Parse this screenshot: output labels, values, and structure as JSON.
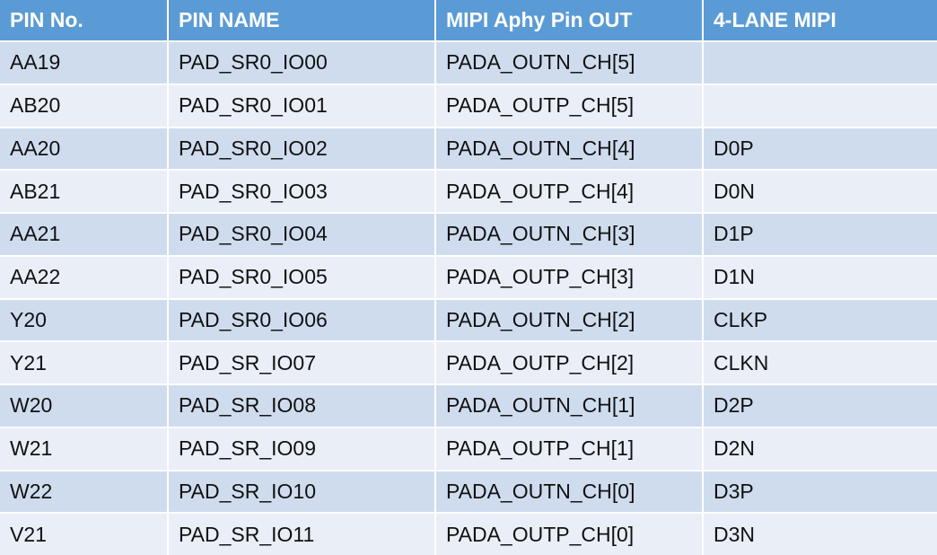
{
  "table": {
    "header": [
      "PIN No.",
      "PIN NAME",
      "MIPI Aphy Pin OUT",
      "4-LANE MIPI"
    ],
    "rows": [
      [
        "AA19",
        "PAD_SR0_IO00",
        "PADA_OUTN_CH[5]"
      ],
      [
        "AB20",
        "PAD_SR0_IO01",
        "PADA_OUTP_CH[5]"
      ],
      [
        "AA20",
        "PAD_SR0_IO02",
        "PADA_OUTN_CH[4]",
        "D0P"
      ],
      [
        "AB21",
        "PAD_SR0_IO03",
        "PADA_OUTP_CH[4]",
        "D0N"
      ],
      [
        "AA21",
        "PAD_SR0_IO04",
        "PADA_OUTN_CH[3]",
        "D1P"
      ],
      [
        "AA22",
        "PAD_SR0_IO05",
        "PADA_OUTP_CH[3]",
        "D1N"
      ],
      [
        "Y20",
        "PAD_SR0_IO06",
        "PADA_OUTN_CH[2]",
        "CLKP"
      ],
      [
        "Y21",
        "PAD_SR_IO07",
        "PADA_OUTP_CH[2]",
        "CLKN"
      ],
      [
        "W20",
        "PAD_SR_IO08",
        "PADA_OUTN_CH[1]",
        "D2P"
      ],
      [
        "W21",
        "PAD_SR_IO09",
        "PADA_OUTP_CH[1]",
        "D2N"
      ],
      [
        "W22",
        "PAD_SR_IO10",
        "PADA_OUTN_CH[0]",
        "D3P"
      ],
      [
        "V21",
        "PAD_SR_IO11",
        "PADA_OUTP_CH[0]",
        "D3N"
      ]
    ]
  }
}
